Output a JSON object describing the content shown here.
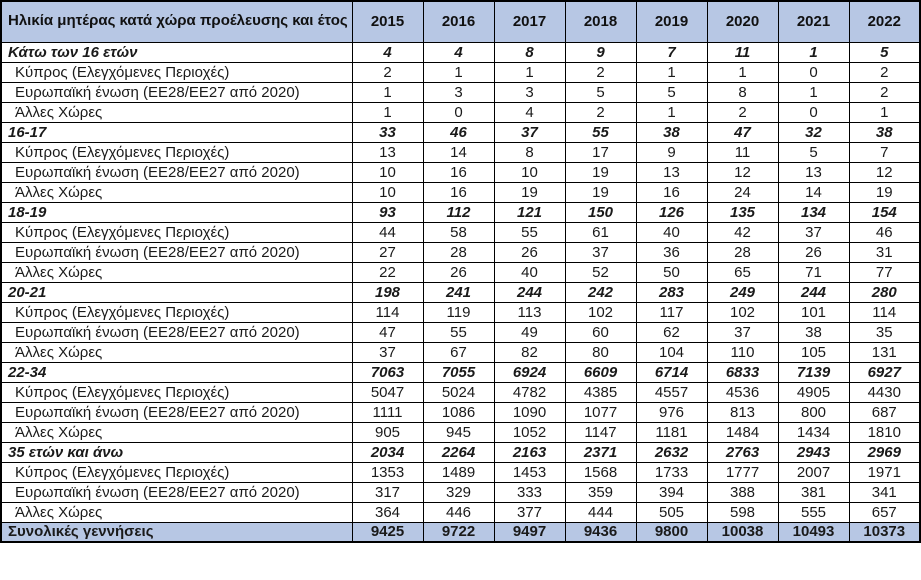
{
  "chart_data": {
    "type": "table",
    "title": "Ηλικία μητέρας κατά χώρα προέλευσης και έτος",
    "columns": [
      "2015",
      "2016",
      "2017",
      "2018",
      "2019",
      "2020",
      "2021",
      "2022"
    ],
    "rows": [
      {
        "label": "Κάτω των 16 ετών",
        "style": "group",
        "values": [
          4,
          4,
          8,
          9,
          7,
          11,
          1,
          5
        ]
      },
      {
        "label": "Κύπρος (Ελεγχόμενες Περιοχές)",
        "style": "sub",
        "values": [
          2,
          1,
          1,
          2,
          1,
          1,
          0,
          2
        ]
      },
      {
        "label": "Ευρωπαϊκή ένωση (ΕΕ28/ΕΕ27 από 2020)",
        "style": "sub",
        "values": [
          1,
          3,
          3,
          5,
          5,
          8,
          1,
          2
        ]
      },
      {
        "label": "Άλλες Χώρες",
        "style": "sub",
        "values": [
          1,
          0,
          4,
          2,
          1,
          2,
          0,
          1
        ]
      },
      {
        "label": "16-17",
        "style": "group",
        "values": [
          33,
          46,
          37,
          55,
          38,
          47,
          32,
          38
        ]
      },
      {
        "label": "Κύπρος (Ελεγχόμενες Περιοχές)",
        "style": "sub",
        "values": [
          13,
          14,
          8,
          17,
          9,
          11,
          5,
          7
        ]
      },
      {
        "label": "Ευρωπαϊκή ένωση (ΕΕ28/ΕΕ27 από 2020)",
        "style": "sub",
        "values": [
          10,
          16,
          10,
          19,
          13,
          12,
          13,
          12
        ]
      },
      {
        "label": "Άλλες Χώρες",
        "style": "sub",
        "values": [
          10,
          16,
          19,
          19,
          16,
          24,
          14,
          19
        ]
      },
      {
        "label": "18-19",
        "style": "group",
        "values": [
          93,
          112,
          121,
          150,
          126,
          135,
          134,
          154
        ]
      },
      {
        "label": "Κύπρος (Ελεγχόμενες Περιοχές)",
        "style": "sub",
        "values": [
          44,
          58,
          55,
          61,
          40,
          42,
          37,
          46
        ]
      },
      {
        "label": "Ευρωπαϊκή ένωση (ΕΕ28/ΕΕ27 από 2020)",
        "style": "sub",
        "values": [
          27,
          28,
          26,
          37,
          36,
          28,
          26,
          31
        ]
      },
      {
        "label": "Άλλες Χώρες",
        "style": "sub",
        "values": [
          22,
          26,
          40,
          52,
          50,
          65,
          71,
          77
        ]
      },
      {
        "label": "20-21",
        "style": "group",
        "values": [
          198,
          241,
          244,
          242,
          283,
          249,
          244,
          280
        ]
      },
      {
        "label": "Κύπρος (Ελεγχόμενες Περιοχές)",
        "style": "sub",
        "values": [
          114,
          119,
          113,
          102,
          117,
          102,
          101,
          114
        ]
      },
      {
        "label": "Ευρωπαϊκή ένωση (ΕΕ28/ΕΕ27 από 2020)",
        "style": "sub",
        "values": [
          47,
          55,
          49,
          60,
          62,
          37,
          38,
          35
        ]
      },
      {
        "label": "Άλλες Χώρες",
        "style": "sub",
        "values": [
          37,
          67,
          82,
          80,
          104,
          110,
          105,
          131
        ]
      },
      {
        "label": "22-34",
        "style": "group",
        "values": [
          7063,
          7055,
          6924,
          6609,
          6714,
          6833,
          7139,
          6927
        ]
      },
      {
        "label": "Κύπρος (Ελεγχόμενες Περιοχές)",
        "style": "sub",
        "values": [
          5047,
          5024,
          4782,
          4385,
          4557,
          4536,
          4905,
          4430
        ]
      },
      {
        "label": "Ευρωπαϊκή ένωση (ΕΕ28/ΕΕ27 από 2020)",
        "style": "sub",
        "values": [
          1111,
          1086,
          1090,
          1077,
          976,
          813,
          800,
          687
        ]
      },
      {
        "label": "Άλλες Χώρες",
        "style": "sub",
        "values": [
          905,
          945,
          1052,
          1147,
          1181,
          1484,
          1434,
          1810
        ]
      },
      {
        "label": "35 ετών και άνω",
        "style": "group",
        "values": [
          2034,
          2264,
          2163,
          2371,
          2632,
          2763,
          2943,
          2969
        ]
      },
      {
        "label": "Κύπρος (Ελεγχόμενες Περιοχές)",
        "style": "sub",
        "values": [
          1353,
          1489,
          1453,
          1568,
          1733,
          1777,
          2007,
          1971
        ]
      },
      {
        "label": "Ευρωπαϊκή ένωση (ΕΕ28/ΕΕ27 από 2020)",
        "style": "sub",
        "values": [
          317,
          329,
          333,
          359,
          394,
          388,
          381,
          341
        ]
      },
      {
        "label": "Άλλες Χώρες",
        "style": "sub",
        "values": [
          364,
          446,
          377,
          444,
          505,
          598,
          555,
          657
        ]
      },
      {
        "label": "Συνολικές γεννήσεις",
        "style": "total",
        "values": [
          9425,
          9722,
          9497,
          9436,
          9800,
          10038,
          10493,
          10373
        ]
      }
    ],
    "layout": {
      "grid": true,
      "header_position": "top",
      "total_row_position": "bottom"
    }
  },
  "colors": {
    "header_bg": "#B7C7E4",
    "total_bg": "#B7C7E4",
    "border": "#000000",
    "text": "#1a1a1a"
  }
}
